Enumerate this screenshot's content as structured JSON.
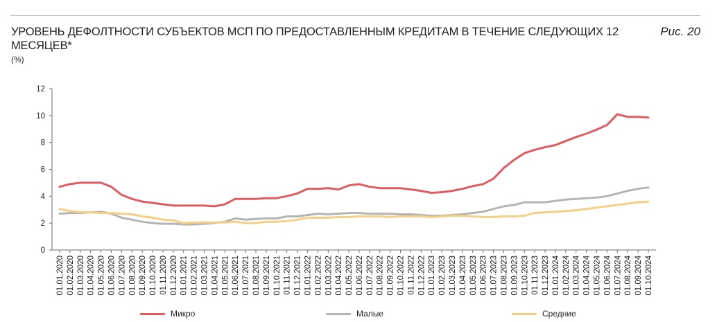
{
  "header": {
    "title": "Уровень дефолтности субъектов МСП по предоставленным кредитам в течение следующих 12 месяцев*",
    "figure_label": "Рис. 20",
    "units": "(%)"
  },
  "colors": {
    "micro": "#e05a5f",
    "small": "#b4b4b4",
    "medium": "#f6cf86",
    "axis": "#6d6e71"
  },
  "chart_data": {
    "type": "line",
    "title": "Уровень дефолтности субъектов МСП по предоставленным кредитам в течение следующих 12 месяцев*",
    "ylabel": "(%)",
    "ylim": [
      0,
      12
    ],
    "yticks": [
      0,
      2,
      4,
      6,
      8,
      10,
      12
    ],
    "grid": false,
    "legend_position": "bottom",
    "x": [
      "01.01.2020",
      "01.02.2020",
      "01.03.2020",
      "01.04.2020",
      "01.05.2020",
      "01.06.2020",
      "01.07.2020",
      "01.08.2020",
      "01.09.2020",
      "01.10.2020",
      "01.11.2020",
      "01.12.2020",
      "01.01.2021",
      "01.02.2021",
      "01.03.2021",
      "01.04.2021",
      "01.05.2021",
      "01.06.2021",
      "01.07.2021",
      "01.08.2021",
      "01.09.2021",
      "01.10.2021",
      "01.11.2021",
      "01.12.2021",
      "01.01.2022",
      "01.02.2022",
      "01.03.2022",
      "01.04.2022",
      "01.05.2022",
      "01.06.2022",
      "01.07.2022",
      "01.08.2022",
      "01.09.2022",
      "01.10.2022",
      "01.11.2022",
      "01.12.2022",
      "01.01.2023",
      "01.02.2023",
      "01.03.2023",
      "01.04.2023",
      "01.05.2023",
      "01.06.2023",
      "01.07.2023",
      "01.08.2023",
      "01.09.2023",
      "01.10.2023",
      "01.11.2023",
      "01.12.2023",
      "01.01.2024",
      "01.02.2024",
      "01.03.2024",
      "01.04.2024",
      "01.05.2024",
      "01.06.2024",
      "01.07.2024",
      "01.08.2024",
      "01.09.2024",
      "01.10.2024"
    ],
    "series": [
      {
        "name": "Микро",
        "color_key": "micro",
        "values": [
          4.7,
          4.9,
          5.0,
          5.0,
          5.0,
          4.7,
          4.1,
          3.8,
          3.6,
          3.5,
          3.4,
          3.3,
          3.3,
          3.3,
          3.3,
          3.25,
          3.4,
          3.8,
          3.8,
          3.8,
          3.85,
          3.85,
          4.0,
          4.2,
          4.55,
          4.55,
          4.6,
          4.5,
          4.8,
          4.9,
          4.7,
          4.6,
          4.6,
          4.6,
          4.5,
          4.4,
          4.25,
          4.3,
          4.4,
          4.55,
          4.75,
          4.9,
          5.3,
          6.1,
          6.7,
          7.2,
          7.45,
          7.65,
          7.8,
          8.1,
          8.4,
          8.65,
          8.95,
          9.3,
          10.1,
          9.9,
          9.9,
          9.85
        ]
      },
      {
        "name": "Малые",
        "color_key": "small",
        "values": [
          2.7,
          2.75,
          2.75,
          2.8,
          2.85,
          2.7,
          2.4,
          2.25,
          2.1,
          2.0,
          1.95,
          1.95,
          1.9,
          1.9,
          1.95,
          2.0,
          2.1,
          2.35,
          2.25,
          2.3,
          2.35,
          2.35,
          2.5,
          2.5,
          2.6,
          2.7,
          2.65,
          2.7,
          2.75,
          2.75,
          2.7,
          2.7,
          2.7,
          2.65,
          2.65,
          2.6,
          2.55,
          2.55,
          2.6,
          2.65,
          2.75,
          2.85,
          3.05,
          3.25,
          3.35,
          3.55,
          3.55,
          3.55,
          3.65,
          3.75,
          3.8,
          3.85,
          3.9,
          4.0,
          4.2,
          4.4,
          4.55,
          4.65
        ]
      },
      {
        "name": "Средние",
        "color_key": "medium",
        "values": [
          3.05,
          2.9,
          2.8,
          2.8,
          2.75,
          2.75,
          2.7,
          2.65,
          2.5,
          2.4,
          2.25,
          2.2,
          2.0,
          2.05,
          2.05,
          2.05,
          2.05,
          2.1,
          2.0,
          2.0,
          2.1,
          2.1,
          2.15,
          2.25,
          2.4,
          2.4,
          2.4,
          2.45,
          2.45,
          2.5,
          2.5,
          2.5,
          2.45,
          2.5,
          2.5,
          2.5,
          2.45,
          2.5,
          2.55,
          2.55,
          2.5,
          2.45,
          2.45,
          2.5,
          2.5,
          2.55,
          2.75,
          2.8,
          2.85,
          2.9,
          2.95,
          3.05,
          3.15,
          3.25,
          3.35,
          3.45,
          3.55,
          3.6
        ]
      }
    ]
  }
}
